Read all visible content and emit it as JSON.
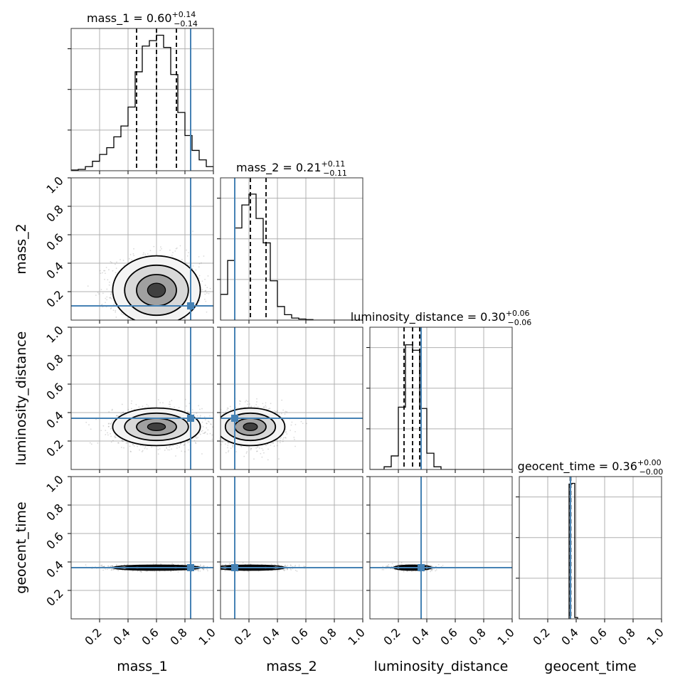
{
  "chart_data": {
    "type": "corner",
    "parameters": [
      "mass_1",
      "mass_2",
      "luminosity_distance",
      "geocent_time"
    ],
    "titles": [
      {
        "param": "mass_1",
        "median": "0.60",
        "plus": "+0.14",
        "minus": "−0.14"
      },
      {
        "param": "mass_2",
        "median": "0.21",
        "plus": "+0.11",
        "minus": "−0.11"
      },
      {
        "param": "luminosity_distance",
        "median": "0.30",
        "plus": "+0.06",
        "minus": "−0.06"
      },
      {
        "param": "geocent_time",
        "median": "0.36",
        "plus": "+0.00",
        "minus": "−0.00"
      }
    ],
    "xlim": [
      0,
      1
    ],
    "ylim": [
      0,
      1
    ],
    "x_ticks": [
      "0.2",
      "0.4",
      "0.6",
      "0.8",
      "1.0"
    ],
    "y_ticks": [
      "0.2",
      "0.4",
      "0.6",
      "0.8",
      "1.0"
    ],
    "truths": {
      "mass_1": 0.84,
      "mass_2": 0.1,
      "luminosity_distance": 0.36,
      "geocent_time": 0.36
    },
    "quantiles": {
      "mass_1": [
        0.46,
        0.6,
        0.74
      ],
      "mass_2": [
        0.1,
        0.21,
        0.32
      ],
      "luminosity_distance": [
        0.24,
        0.3,
        0.35
      ],
      "geocent_time": [
        0.358,
        0.36,
        0.362
      ]
    },
    "histograms": {
      "mass_1": {
        "edges": [
          0,
          0.05,
          0.1,
          0.15,
          0.2,
          0.25,
          0.3,
          0.35,
          0.4,
          0.45,
          0.5,
          0.55,
          0.6,
          0.65,
          0.7,
          0.75,
          0.8,
          0.85,
          0.9,
          0.95,
          1.0
        ],
        "counts": [
          0.005,
          0.01,
          0.03,
          0.07,
          0.12,
          0.17,
          0.25,
          0.33,
          0.47,
          0.73,
          0.92,
          0.96,
          1.0,
          0.91,
          0.71,
          0.43,
          0.26,
          0.15,
          0.08,
          0.03
        ]
      },
      "mass_2": {
        "edges": [
          0,
          0.05,
          0.1,
          0.15,
          0.2,
          0.25,
          0.3,
          0.35,
          0.4,
          0.45,
          0.5,
          0.55,
          0.6,
          0.65,
          0.7,
          0.75,
          0.8,
          0.85,
          0.9,
          0.95,
          1.0
        ],
        "counts": [
          0.19,
          0.44,
          0.68,
          0.85,
          0.93,
          0.75,
          0.57,
          0.29,
          0.1,
          0.04,
          0.015,
          0.008,
          0.004,
          0,
          0,
          0,
          0,
          0,
          0,
          0
        ]
      },
      "luminosity_distance": {
        "edges": [
          0,
          0.05,
          0.1,
          0.15,
          0.2,
          0.25,
          0.3,
          0.35,
          0.4,
          0.45,
          0.5,
          0.55,
          0.6,
          0.65,
          0.7,
          0.75,
          0.8,
          0.85,
          0.9,
          0.95,
          1.0
        ],
        "counts": [
          0,
          0,
          0.02,
          0.1,
          0.46,
          0.92,
          0.88,
          0.45,
          0.12,
          0.02,
          0,
          0,
          0,
          0,
          0,
          0,
          0,
          0,
          0,
          0
        ]
      },
      "geocent_time": {
        "edges": [
          0.35,
          0.37,
          0.39,
          0.41
        ],
        "counts": [
          0.995,
          1.0,
          0.01
        ]
      }
    },
    "joint_centers": {
      "mass_2|mass_1": [
        0.6,
        0.21
      ],
      "luminosity_distance|mass_1": [
        0.6,
        0.3
      ],
      "luminosity_distance|mass_2": [
        0.21,
        0.3
      ],
      "geocent_time|mass_1": [
        0.6,
        0.36
      ],
      "geocent_time|mass_2": [
        0.21,
        0.36
      ],
      "geocent_time|luminosity_distance": [
        0.3,
        0.36
      ]
    },
    "colors": {
      "truth": "#4682b4",
      "hist": "#000000",
      "grid": "#b0b0b0"
    }
  }
}
